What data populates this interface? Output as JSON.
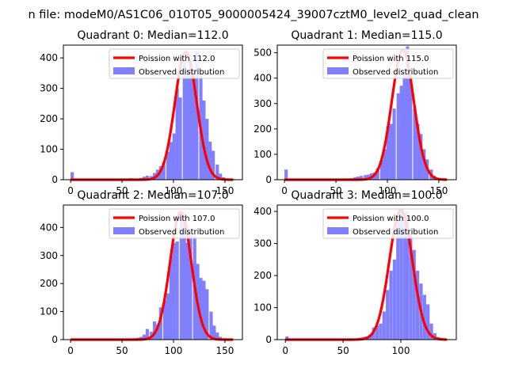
{
  "figure": {
    "suptitle": "n file: modeM0/AS1C06_010T05_9000005424_39007cztM0_level2_quad_clean"
  },
  "colors": {
    "hist": "#8080ff",
    "poisson": "#ff0000",
    "axes": "#000000",
    "legend_border": "#cccccc"
  },
  "chart_data": [
    {
      "type": "bar",
      "title": "Quadrant 0: Median=112.0",
      "xlim": [
        -7,
        167
      ],
      "ylim": [
        0,
        442
      ],
      "xticks": [
        0,
        50,
        100,
        150
      ],
      "yticks": [
        0,
        100,
        200,
        300,
        400
      ],
      "legend": {
        "placement": "upper-right",
        "line_label": "Poission with 112.0",
        "hist_label": "Observed distribution"
      },
      "poisson_mean": 112.0,
      "poisson_peak": 420,
      "poisson_range": [
        0,
        158
      ],
      "bin_width": 3.2,
      "bins": [
        [
          0,
          25
        ],
        [
          54,
          3
        ],
        [
          57,
          5
        ],
        [
          61,
          3
        ],
        [
          64,
          4
        ],
        [
          67,
          6
        ],
        [
          70,
          10
        ],
        [
          73,
          13
        ],
        [
          77,
          12
        ],
        [
          80,
          22
        ],
        [
          83,
          33
        ],
        [
          86,
          45
        ],
        [
          89,
          58
        ],
        [
          93,
          92
        ],
        [
          96,
          124
        ],
        [
          99,
          152
        ],
        [
          102,
          300
        ],
        [
          105,
          270
        ],
        [
          109,
          392
        ],
        [
          112,
          360
        ],
        [
          115,
          390
        ],
        [
          118,
          360
        ],
        [
          121,
          420
        ],
        [
          125,
          340
        ],
        [
          128,
          260
        ],
        [
          131,
          200
        ],
        [
          134,
          125
        ],
        [
          137,
          95
        ],
        [
          141,
          50
        ],
        [
          144,
          20
        ],
        [
          147,
          8
        ],
        [
          150,
          3
        ],
        [
          153,
          3
        ],
        [
          157,
          2
        ]
      ]
    },
    {
      "type": "bar",
      "title": "Quadrant 1: Median=115.0",
      "xlim": [
        -7,
        167
      ],
      "ylim": [
        0,
        530
      ],
      "xticks": [
        0,
        50,
        100,
        150
      ],
      "yticks": [
        0,
        100,
        200,
        300,
        400,
        500
      ],
      "legend": {
        "placement": "upper-right",
        "line_label": "Poission with 115.0",
        "hist_label": "Observed distribution"
      },
      "poisson_mean": 115.0,
      "poisson_peak": 510,
      "poisson_range": [
        0,
        158
      ],
      "bin_width": 3.2,
      "bins": [
        [
          0,
          40
        ],
        [
          54,
          3
        ],
        [
          57,
          4
        ],
        [
          61,
          5
        ],
        [
          64,
          6
        ],
        [
          67,
          10
        ],
        [
          70,
          12
        ],
        [
          73,
          15
        ],
        [
          77,
          18
        ],
        [
          80,
          20
        ],
        [
          83,
          25
        ],
        [
          86,
          28
        ],
        [
          89,
          45
        ],
        [
          93,
          78
        ],
        [
          96,
          120
        ],
        [
          99,
          210
        ],
        [
          102,
          220
        ],
        [
          105,
          280
        ],
        [
          109,
          340
        ],
        [
          112,
          370
        ],
        [
          115,
          420
        ],
        [
          118,
          525
        ],
        [
          121,
          400
        ],
        [
          125,
          280
        ],
        [
          128,
          220
        ],
        [
          131,
          180
        ],
        [
          134,
          120
        ],
        [
          137,
          80
        ],
        [
          141,
          40
        ],
        [
          144,
          15
        ],
        [
          147,
          8
        ],
        [
          150,
          4
        ]
      ]
    },
    {
      "type": "bar",
      "title": "Quadrant 2: Median=107.0",
      "xlim": [
        -7,
        167
      ],
      "ylim": [
        0,
        480
      ],
      "xticks": [
        0,
        50,
        100,
        150
      ],
      "yticks": [
        0,
        100,
        200,
        300,
        400
      ],
      "legend": {
        "placement": "upper-right",
        "line_label": "Poission with 107.0",
        "hist_label": "Observed distribution"
      },
      "poisson_mean": 107.0,
      "poisson_peak": 455,
      "poisson_range": [
        0,
        158
      ],
      "bin_width": 3.2,
      "bins": [
        [
          54,
          3
        ],
        [
          57,
          4
        ],
        [
          61,
          5
        ],
        [
          64,
          7
        ],
        [
          67,
          10
        ],
        [
          70,
          18
        ],
        [
          73,
          38
        ],
        [
          77,
          28
        ],
        [
          80,
          65
        ],
        [
          83,
          55
        ],
        [
          86,
          115
        ],
        [
          90,
          140
        ],
        [
          93,
          165
        ],
        [
          96,
          300
        ],
        [
          99,
          345
        ],
        [
          102,
          350
        ],
        [
          106,
          460
        ],
        [
          109,
          420
        ],
        [
          112,
          345
        ],
        [
          115,
          380
        ],
        [
          119,
          370
        ],
        [
          122,
          270
        ],
        [
          125,
          220
        ],
        [
          128,
          210
        ],
        [
          131,
          180
        ],
        [
          135,
          100
        ],
        [
          138,
          50
        ],
        [
          141,
          25
        ],
        [
          144,
          10
        ],
        [
          148,
          5
        ]
      ]
    },
    {
      "type": "bar",
      "title": "Quadrant 3: Median=100.0",
      "xlim": [
        -7,
        148
      ],
      "ylim": [
        0,
        420
      ],
      "xticks": [
        0,
        50,
        100
      ],
      "yticks": [
        0,
        100,
        200,
        300,
        400
      ],
      "legend": {
        "placement": "upper-right",
        "line_label": "Poission with 100.0",
        "hist_label": "Observed distribution"
      },
      "poisson_mean": 100.0,
      "poisson_peak": 405,
      "poisson_range": [
        0,
        140
      ],
      "bin_width": 2.9,
      "bins": [
        [
          0,
          10
        ],
        [
          57,
          3
        ],
        [
          60,
          4
        ],
        [
          63,
          6
        ],
        [
          66,
          8
        ],
        [
          69,
          10
        ],
        [
          72,
          15
        ],
        [
          75,
          38
        ],
        [
          78,
          45
        ],
        [
          81,
          50
        ],
        [
          84,
          88
        ],
        [
          87,
          155
        ],
        [
          90,
          215
        ],
        [
          93,
          250
        ],
        [
          96,
          380
        ],
        [
          99,
          405
        ],
        [
          102,
          370
        ],
        [
          104,
          400
        ],
        [
          107,
          330
        ],
        [
          110,
          280
        ],
        [
          113,
          215
        ],
        [
          116,
          175
        ],
        [
          119,
          140
        ],
        [
          122,
          110
        ],
        [
          125,
          50
        ],
        [
          128,
          20
        ],
        [
          131,
          8
        ],
        [
          134,
          5
        ]
      ]
    }
  ]
}
